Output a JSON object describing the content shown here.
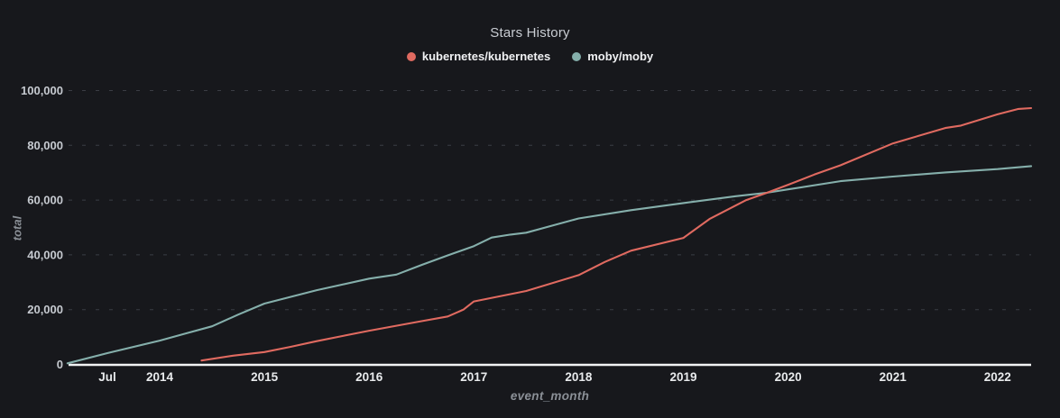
{
  "page": {
    "background": "#17181c"
  },
  "colors": {
    "background": "#17181c",
    "grid_line": "#3a3d44",
    "axis_line": "#f2f3f4",
    "x_tick_label": "#e8eaec",
    "y_tick_label": "#c6cad0",
    "axis_title": "#8b9097",
    "chart_title": "#c9cdd3",
    "legend_label": "#f0f1f3",
    "kubernetes_series": "#e06a60",
    "moby_series": "#85afab"
  },
  "chart_data": {
    "type": "line",
    "title": "Stars History",
    "xlabel": "event_month",
    "ylabel": "total",
    "legend_position": "top",
    "grid": "horizontal dashed",
    "xlim": [
      2013.12,
      2022.32
    ],
    "ylim": [
      0,
      100000
    ],
    "x_ticks": [
      {
        "value": 2013.5,
        "label": "Jul"
      },
      {
        "value": 2014,
        "label": "2014"
      },
      {
        "value": 2015,
        "label": "2015"
      },
      {
        "value": 2016,
        "label": "2016"
      },
      {
        "value": 2017,
        "label": "2017"
      },
      {
        "value": 2018,
        "label": "2018"
      },
      {
        "value": 2019,
        "label": "2019"
      },
      {
        "value": 2020,
        "label": "2020"
      },
      {
        "value": 2021,
        "label": "2021"
      },
      {
        "value": 2022,
        "label": "2022"
      }
    ],
    "y_ticks": [
      {
        "value": 0,
        "label": "0"
      },
      {
        "value": 20000,
        "label": "20,000"
      },
      {
        "value": 40000,
        "label": "40,000"
      },
      {
        "value": 60000,
        "label": "60,000"
      },
      {
        "value": 80000,
        "label": "80,000"
      },
      {
        "value": 100000,
        "label": "100,000"
      }
    ],
    "series": [
      {
        "name": "kubernetes/kubernetes",
        "color": "#e06a60",
        "points": [
          [
            2014.4,
            1400
          ],
          [
            2014.7,
            3200
          ],
          [
            2015.0,
            4500
          ],
          [
            2015.25,
            6400
          ],
          [
            2015.5,
            8500
          ],
          [
            2015.75,
            10400
          ],
          [
            2016.0,
            12300
          ],
          [
            2016.5,
            15800
          ],
          [
            2016.75,
            17500
          ],
          [
            2016.9,
            20000
          ],
          [
            2017.0,
            23000
          ],
          [
            2017.5,
            26800
          ],
          [
            2018.0,
            32600
          ],
          [
            2018.25,
            37400
          ],
          [
            2018.5,
            41500
          ],
          [
            2019.0,
            46200
          ],
          [
            2019.25,
            53100
          ],
          [
            2019.6,
            60000
          ],
          [
            2019.8,
            62700
          ],
          [
            2020.0,
            65600
          ],
          [
            2020.25,
            69300
          ],
          [
            2020.5,
            72700
          ],
          [
            2021.0,
            80700
          ],
          [
            2021.5,
            86300
          ],
          [
            2021.65,
            87200
          ],
          [
            2022.0,
            91300
          ],
          [
            2022.2,
            93300
          ],
          [
            2022.32,
            93600
          ]
        ]
      },
      {
        "name": "moby/moby",
        "color": "#85afab",
        "points": [
          [
            2013.12,
            400
          ],
          [
            2013.5,
            4100
          ],
          [
            2014.0,
            8700
          ],
          [
            2014.25,
            11300
          ],
          [
            2014.5,
            13900
          ],
          [
            2014.75,
            18200
          ],
          [
            2015.0,
            22200
          ],
          [
            2015.5,
            27100
          ],
          [
            2016.0,
            31300
          ],
          [
            2016.26,
            32800
          ],
          [
            2016.5,
            36300
          ],
          [
            2016.75,
            39800
          ],
          [
            2017.0,
            43200
          ],
          [
            2017.17,
            46300
          ],
          [
            2017.35,
            47400
          ],
          [
            2017.5,
            48100
          ],
          [
            2018.0,
            53300
          ],
          [
            2018.5,
            56300
          ],
          [
            2019.0,
            58900
          ],
          [
            2019.5,
            61400
          ],
          [
            2019.8,
            62700
          ],
          [
            2020.0,
            63900
          ],
          [
            2020.5,
            66900
          ],
          [
            2021.0,
            68600
          ],
          [
            2021.5,
            70100
          ],
          [
            2022.0,
            71300
          ],
          [
            2022.32,
            72400
          ]
        ]
      }
    ]
  }
}
